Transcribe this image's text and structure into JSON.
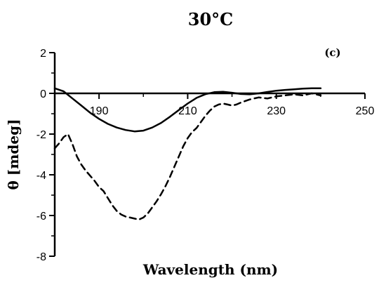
{
  "chart_data": {
    "type": "line",
    "title": "30°C",
    "panel_label": "(c)",
    "xlabel": "Wavelength (nm)",
    "ylabel": "θ [mdeg]",
    "xlim": [
      180,
      250
    ],
    "ylim": [
      -8,
      2
    ],
    "x_ticks": [
      190,
      210,
      230,
      250
    ],
    "y_ticks": [
      2,
      0,
      -2,
      -4,
      -6,
      -8
    ],
    "series": [
      {
        "style": "solid",
        "color": "#000000",
        "x": [
          180,
          182,
          184,
          186,
          188,
          190,
          192,
          194,
          196,
          198,
          200,
          202,
          204,
          206,
          208,
          210,
          212,
          214,
          216,
          218,
          220,
          222,
          224,
          226,
          228,
          230,
          232,
          234,
          236,
          238,
          240
        ],
        "values": [
          0.25,
          0.1,
          -0.25,
          -0.6,
          -0.95,
          -1.25,
          -1.5,
          -1.68,
          -1.8,
          -1.87,
          -1.83,
          -1.68,
          -1.45,
          -1.15,
          -0.82,
          -0.5,
          -0.22,
          -0.04,
          0.06,
          0.08,
          0.03,
          -0.03,
          -0.05,
          0.0,
          0.07,
          0.13,
          0.17,
          0.2,
          0.23,
          0.25,
          0.25
        ]
      },
      {
        "style": "dashed",
        "color": "#000000",
        "x": [
          180,
          181,
          182,
          183,
          184,
          185,
          186,
          187,
          188,
          189,
          190,
          191,
          192,
          193,
          194,
          195,
          196,
          197,
          198,
          199,
          200,
          201,
          202,
          203,
          204,
          205,
          206,
          207,
          208,
          209,
          210,
          211,
          212,
          213,
          214,
          215,
          216,
          217,
          218,
          219,
          220,
          221,
          222,
          224,
          226,
          228,
          230,
          232,
          234,
          236,
          238,
          240
        ],
        "values": [
          -2.7,
          -2.45,
          -2.15,
          -2.0,
          -2.5,
          -3.1,
          -3.5,
          -3.8,
          -4.05,
          -4.3,
          -4.6,
          -4.8,
          -5.15,
          -5.5,
          -5.78,
          -5.95,
          -6.05,
          -6.1,
          -6.15,
          -6.2,
          -6.1,
          -5.9,
          -5.6,
          -5.3,
          -4.95,
          -4.55,
          -4.1,
          -3.6,
          -3.1,
          -2.6,
          -2.2,
          -1.9,
          -1.7,
          -1.4,
          -1.1,
          -0.85,
          -0.65,
          -0.55,
          -0.5,
          -0.55,
          -0.6,
          -0.55,
          -0.45,
          -0.3,
          -0.2,
          -0.25,
          -0.15,
          -0.1,
          -0.05,
          -0.1,
          0.0,
          -0.1
        ]
      }
    ]
  }
}
